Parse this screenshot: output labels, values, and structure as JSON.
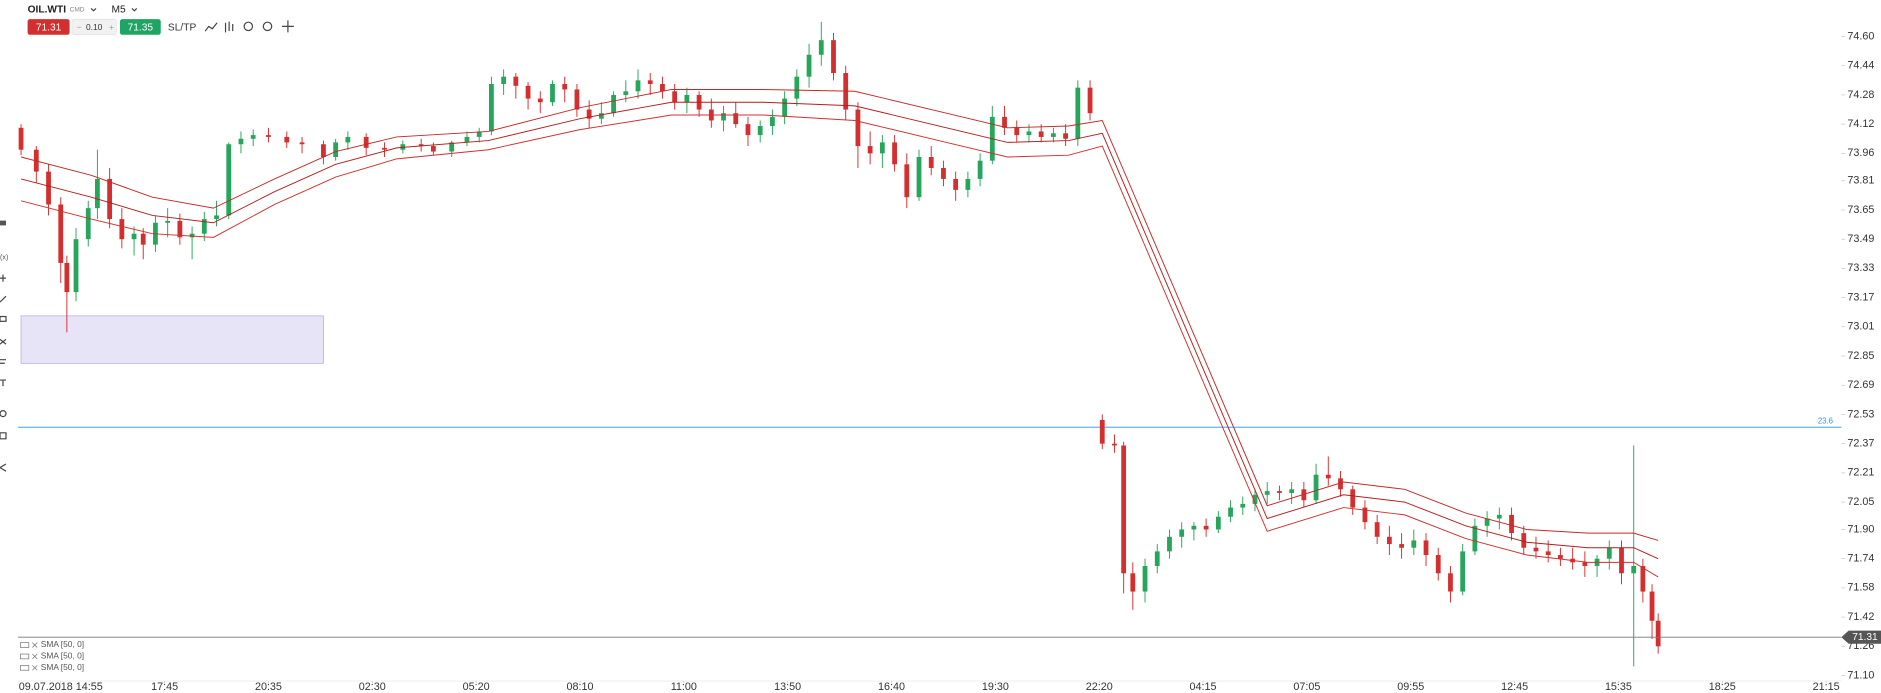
{
  "toolbar": {
    "instrument": "OIL.WTI",
    "market": "CMD",
    "timeframe": "M5",
    "sell": "71.31",
    "spread": "0.10",
    "buy": "71.35",
    "sltp": "SL/TP"
  },
  "chart_data": {
    "type": "candlestick",
    "xlim": [
      -14,
      583
    ],
    "ylim": [
      71.07,
      74.8
    ],
    "xticks": [
      {
        "value": 0,
        "label": "09.07.2018 14:55"
      },
      {
        "value": 34,
        "label": "17:45"
      },
      {
        "value": 68,
        "label": "20:35"
      },
      {
        "value": 102,
        "label": "02:30"
      },
      {
        "value": 136,
        "label": "05:20"
      },
      {
        "value": 170,
        "label": "08:10"
      },
      {
        "value": 204,
        "label": "11:00"
      },
      {
        "value": 238,
        "label": "13:50"
      },
      {
        "value": 272,
        "label": "16:40"
      },
      {
        "value": 306,
        "label": "19:30"
      },
      {
        "value": 340,
        "label": "22:20"
      },
      {
        "value": 374,
        "label": "04:15"
      },
      {
        "value": 408,
        "label": "07:05"
      },
      {
        "value": 442,
        "label": "09:55"
      },
      {
        "value": 476,
        "label": "12:45"
      },
      {
        "value": 510,
        "label": "15:35"
      },
      {
        "value": 544,
        "label": "18:25"
      },
      {
        "value": 578,
        "label": "21:15"
      }
    ],
    "yticks": [
      {
        "value": 74.6,
        "label": "74.60"
      },
      74.44,
      74.28,
      74.12,
      73.96,
      73.81,
      73.65,
      73.49,
      73.33,
      73.17,
      73.01,
      72.85,
      72.69,
      72.53,
      72.37,
      72.21,
      72.05,
      {
        "value": 71.9,
        "label": "71.90"
      },
      71.74,
      71.58,
      71.42,
      71.26,
      {
        "value": 71.1,
        "label": "71.10"
      }
    ],
    "up_color": "#26a65b",
    "down_color": "#d32f2f",
    "candles": [
      [
        -13,
        74.1,
        74.12,
        73.95,
        73.98
      ],
      [
        -8,
        73.98,
        74.0,
        73.8,
        73.86
      ],
      [
        -4,
        73.86,
        73.9,
        73.62,
        73.68
      ],
      [
        0,
        73.68,
        73.72,
        73.25,
        73.36
      ],
      [
        2,
        73.36,
        73.4,
        72.98,
        73.2
      ],
      [
        5,
        73.2,
        73.55,
        73.15,
        73.49
      ],
      [
        9,
        73.49,
        73.7,
        73.45,
        73.66
      ],
      [
        12,
        73.66,
        73.98,
        73.6,
        73.82
      ],
      [
        16,
        73.82,
        73.88,
        73.55,
        73.6
      ],
      [
        20,
        73.6,
        73.66,
        73.44,
        73.49
      ],
      [
        24,
        73.49,
        73.56,
        73.4,
        73.52
      ],
      [
        27,
        73.52,
        73.55,
        73.38,
        73.46
      ],
      [
        31,
        73.46,
        73.62,
        73.42,
        73.58
      ],
      [
        35,
        73.58,
        73.66,
        73.5,
        73.59
      ],
      [
        39,
        73.59,
        73.63,
        73.46,
        73.5
      ],
      [
        43,
        73.5,
        73.56,
        73.38,
        73.52
      ],
      [
        47,
        73.52,
        73.64,
        73.48,
        73.6
      ],
      [
        51,
        73.6,
        73.7,
        73.56,
        73.62
      ],
      [
        55,
        73.62,
        74.02,
        73.6,
        74.01
      ],
      [
        59,
        74.01,
        74.08,
        73.96,
        74.04
      ],
      [
        63,
        74.04,
        74.09,
        74.0,
        74.06
      ],
      [
        68,
        74.06,
        74.1,
        74.02,
        74.05
      ],
      [
        74,
        74.05,
        74.08,
        73.99,
        74.02
      ],
      [
        79,
        74.02,
        74.05,
        73.96,
        74.01
      ],
      [
        86,
        74.01,
        74.03,
        73.9,
        73.94
      ],
      [
        90,
        73.94,
        74.04,
        73.92,
        74.02
      ],
      [
        94,
        74.02,
        74.08,
        73.98,
        74.05
      ],
      [
        100,
        74.05,
        74.07,
        73.95,
        73.99
      ],
      [
        106,
        73.99,
        74.02,
        73.94,
        73.98
      ],
      [
        112,
        73.98,
        74.03,
        73.96,
        74.01
      ],
      [
        118,
        74.01,
        74.04,
        73.97,
        74.0
      ],
      [
        122,
        74.0,
        74.02,
        73.95,
        73.97
      ],
      [
        128,
        73.97,
        74.03,
        73.94,
        74.02
      ],
      [
        133,
        74.02,
        74.08,
        74.0,
        74.05
      ],
      [
        137,
        74.05,
        74.1,
        74.02,
        74.08
      ],
      [
        141,
        74.08,
        74.38,
        74.06,
        74.34
      ],
      [
        145,
        74.34,
        74.42,
        74.28,
        74.38
      ],
      [
        149,
        74.38,
        74.4,
        74.26,
        74.33
      ],
      [
        153,
        74.33,
        74.35,
        74.2,
        74.26
      ],
      [
        157,
        74.26,
        74.3,
        74.18,
        74.24
      ],
      [
        161,
        74.24,
        74.36,
        74.22,
        74.34
      ],
      [
        165,
        74.34,
        74.38,
        74.24,
        74.31
      ],
      [
        169,
        74.31,
        74.34,
        74.16,
        74.2
      ],
      [
        173,
        74.2,
        74.25,
        74.1,
        74.15
      ],
      [
        177,
        74.15,
        74.24,
        74.12,
        74.18
      ],
      [
        181,
        74.18,
        74.3,
        74.16,
        74.28
      ],
      [
        185,
        74.28,
        74.36,
        74.24,
        74.3
      ],
      [
        189,
        74.3,
        74.42,
        74.26,
        74.36
      ],
      [
        193,
        74.36,
        74.4,
        74.28,
        74.34
      ],
      [
        197,
        74.34,
        74.38,
        74.26,
        74.3
      ],
      [
        201,
        74.3,
        74.34,
        74.2,
        74.24
      ],
      [
        205,
        74.24,
        74.32,
        74.18,
        74.28
      ],
      [
        209,
        74.28,
        74.3,
        74.16,
        74.2
      ],
      [
        213,
        74.2,
        74.26,
        74.1,
        74.14
      ],
      [
        217,
        74.14,
        74.22,
        74.08,
        74.18
      ],
      [
        221,
        74.18,
        74.24,
        74.1,
        74.12
      ],
      [
        225,
        74.12,
        74.16,
        74.0,
        74.06
      ],
      [
        229,
        74.06,
        74.14,
        74.02,
        74.11
      ],
      [
        233,
        74.11,
        74.2,
        74.06,
        74.16
      ],
      [
        237,
        74.16,
        74.3,
        74.12,
        74.26
      ],
      [
        241,
        74.26,
        74.42,
        74.22,
        74.38
      ],
      [
        245,
        74.38,
        74.56,
        74.32,
        74.5
      ],
      [
        249,
        74.5,
        74.68,
        74.44,
        74.58
      ],
      [
        253,
        74.58,
        74.62,
        74.36,
        74.4
      ],
      [
        257,
        74.4,
        74.44,
        74.14,
        74.2
      ],
      [
        261,
        74.2,
        74.24,
        73.88,
        74.0
      ],
      [
        265,
        74.0,
        74.08,
        73.9,
        73.96
      ],
      [
        269,
        73.96,
        74.06,
        73.88,
        74.02
      ],
      [
        273,
        74.02,
        74.06,
        73.86,
        73.9
      ],
      [
        277,
        73.9,
        73.96,
        73.66,
        73.72
      ],
      [
        281,
        73.72,
        73.98,
        73.7,
        73.94
      ],
      [
        285,
        73.94,
        74.0,
        73.84,
        73.88
      ],
      [
        289,
        73.88,
        73.92,
        73.78,
        73.82
      ],
      [
        293,
        73.82,
        73.86,
        73.7,
        73.76
      ],
      [
        297,
        73.76,
        73.86,
        73.72,
        73.82
      ],
      [
        301,
        73.82,
        73.96,
        73.78,
        73.92
      ],
      [
        305,
        73.92,
        74.22,
        73.9,
        74.16
      ],
      [
        309,
        74.16,
        74.22,
        74.06,
        74.1
      ],
      [
        313,
        74.1,
        74.14,
        74.02,
        74.06
      ],
      [
        317,
        74.06,
        74.12,
        74.02,
        74.08
      ],
      [
        321,
        74.08,
        74.12,
        74.02,
        74.05
      ],
      [
        325,
        74.05,
        74.1,
        74.02,
        74.07
      ],
      [
        329,
        74.07,
        74.12,
        74.0,
        74.04
      ],
      [
        333,
        74.04,
        74.36,
        74.0,
        74.32
      ],
      [
        337,
        74.32,
        74.36,
        74.14,
        74.18
      ],
      [
        341,
        72.5,
        72.53,
        72.34,
        72.37
      ],
      [
        345,
        72.37,
        72.42,
        72.32,
        72.36
      ],
      [
        348,
        72.36,
        72.38,
        71.55,
        71.66
      ],
      [
        351,
        71.66,
        71.72,
        71.46,
        71.56
      ],
      [
        355,
        71.56,
        71.74,
        71.5,
        71.7
      ],
      [
        359,
        71.7,
        71.82,
        71.66,
        71.78
      ],
      [
        363,
        71.78,
        71.9,
        71.74,
        71.86
      ],
      [
        367,
        71.86,
        71.94,
        71.8,
        71.9
      ],
      [
        371,
        71.9,
        71.94,
        71.84,
        71.92
      ],
      [
        375,
        71.92,
        71.96,
        71.86,
        71.9
      ],
      [
        379,
        71.9,
        72.0,
        71.88,
        71.97
      ],
      [
        383,
        71.97,
        72.06,
        71.94,
        72.02
      ],
      [
        387,
        72.02,
        72.08,
        71.98,
        72.04
      ],
      [
        391,
        72.04,
        72.12,
        72.0,
        72.09
      ],
      [
        395,
        72.09,
        72.16,
        72.04,
        72.11
      ],
      [
        399,
        72.11,
        72.14,
        72.06,
        72.1
      ],
      [
        403,
        72.1,
        72.16,
        72.04,
        72.12
      ],
      [
        407,
        72.12,
        72.16,
        72.02,
        72.06
      ],
      [
        411,
        72.06,
        72.26,
        72.04,
        72.2
      ],
      [
        415,
        72.2,
        72.3,
        72.14,
        72.18
      ],
      [
        419,
        72.18,
        72.22,
        72.08,
        72.12
      ],
      [
        423,
        72.12,
        72.14,
        71.98,
        72.02
      ],
      [
        427,
        72.02,
        72.06,
        71.9,
        71.94
      ],
      [
        431,
        71.94,
        71.98,
        71.82,
        71.86
      ],
      [
        435,
        71.86,
        71.92,
        71.76,
        71.82
      ],
      [
        439,
        71.82,
        71.88,
        71.74,
        71.8
      ],
      [
        443,
        71.8,
        71.9,
        71.76,
        71.84
      ],
      [
        447,
        71.84,
        71.88,
        71.7,
        71.76
      ],
      [
        451,
        71.76,
        71.8,
        71.62,
        71.66
      ],
      [
        455,
        71.66,
        71.7,
        71.5,
        71.56
      ],
      [
        459,
        71.56,
        71.82,
        71.54,
        71.78
      ],
      [
        463,
        71.78,
        71.96,
        71.76,
        71.92
      ],
      [
        467,
        71.92,
        72.0,
        71.86,
        71.96
      ],
      [
        471,
        71.96,
        72.02,
        71.9,
        71.98
      ],
      [
        475,
        71.98,
        72.02,
        71.84,
        71.88
      ],
      [
        479,
        71.88,
        71.92,
        71.76,
        71.8
      ],
      [
        483,
        71.8,
        71.86,
        71.74,
        71.78
      ],
      [
        487,
        71.78,
        71.84,
        71.72,
        71.76
      ],
      [
        491,
        71.76,
        71.8,
        71.7,
        71.74
      ],
      [
        495,
        71.74,
        71.8,
        71.68,
        71.72
      ],
      [
        499,
        71.72,
        71.78,
        71.64,
        71.7
      ],
      [
        503,
        71.7,
        71.76,
        71.64,
        71.74
      ],
      [
        507,
        71.74,
        71.84,
        71.68,
        71.8
      ],
      [
        511,
        71.8,
        71.84,
        71.6,
        71.66
      ],
      [
        515,
        71.66,
        72.36,
        71.15,
        71.7
      ],
      [
        518,
        71.7,
        71.74,
        71.5,
        71.56
      ],
      [
        521,
        71.56,
        71.6,
        71.3,
        71.4
      ],
      [
        523,
        71.4,
        71.44,
        71.22,
        71.26
      ]
    ],
    "series": [
      {
        "name": "SMA [50, 0]",
        "color": "#c62828",
        "x": [
          -13,
          10,
          30,
          50,
          70,
          90,
          110,
          140,
          170,
          200,
          230,
          260,
          290,
          310,
          330,
          341,
          395,
          420,
          440,
          460,
          480,
          500,
          515,
          523
        ],
        "values": [
          73.94,
          73.84,
          73.72,
          73.66,
          73.82,
          73.97,
          74.05,
          74.08,
          74.21,
          74.31,
          74.31,
          74.3,
          74.18,
          74.1,
          74.11,
          74.14,
          72.03,
          72.16,
          72.12,
          71.99,
          71.9,
          71.88,
          71.88,
          71.84
        ]
      },
      {
        "name": "SMA [50, 0]",
        "color": "#b71c1c",
        "x": [
          -13,
          10,
          30,
          50,
          70,
          90,
          110,
          140,
          170,
          200,
          230,
          260,
          290,
          310,
          330,
          341,
          395,
          420,
          440,
          460,
          480,
          500,
          515,
          523
        ],
        "values": [
          73.82,
          73.72,
          73.62,
          73.58,
          73.75,
          73.9,
          73.99,
          74.03,
          74.15,
          74.24,
          74.24,
          74.22,
          74.1,
          74.02,
          74.03,
          74.07,
          71.96,
          72.09,
          72.05,
          71.92,
          71.83,
          71.8,
          71.8,
          71.74
        ]
      },
      {
        "name": "SMA [50, 0]",
        "color": "#d32f2f",
        "x": [
          -13,
          10,
          30,
          50,
          70,
          90,
          110,
          140,
          170,
          200,
          230,
          260,
          290,
          310,
          330,
          341,
          395,
          420,
          440,
          460,
          480,
          500,
          515,
          523
        ],
        "values": [
          73.7,
          73.6,
          73.52,
          73.5,
          73.68,
          73.83,
          73.93,
          73.98,
          74.09,
          74.17,
          74.17,
          74.14,
          74.02,
          73.94,
          73.95,
          74.0,
          71.89,
          72.02,
          71.98,
          71.85,
          71.76,
          71.72,
          71.72,
          71.64
        ]
      }
    ],
    "rectangle": {
      "x": [
        -13,
        86
      ],
      "y": [
        72.81,
        73.07
      ],
      "color": "#e8e4f7"
    },
    "fib_level": {
      "price": 72.46,
      "label": "23.6",
      "color": "#2196f3"
    },
    "last_price": 71.31,
    "grid": false
  }
}
